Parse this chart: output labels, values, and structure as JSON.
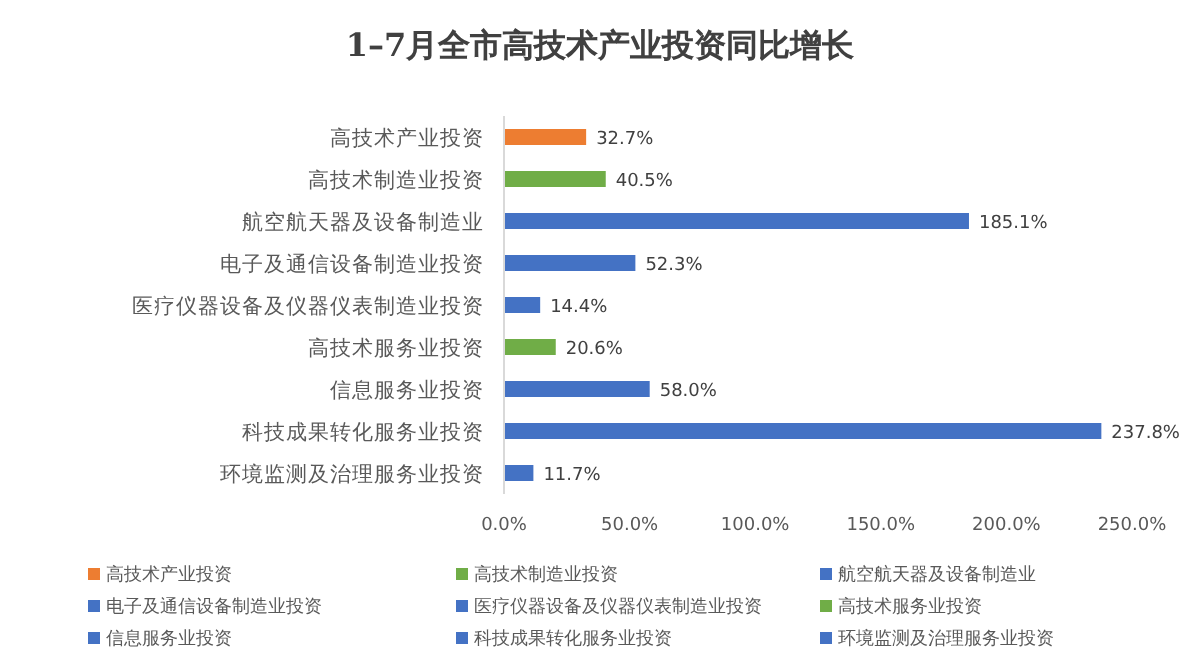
{
  "chart_data": {
    "type": "bar",
    "orientation": "horizontal",
    "stacked": true,
    "title": "1–7月全市高技术产业投资同比增长",
    "categories": [
      "高技术产业投资",
      "高技术制造业投资",
      "航空航天器及设备制造业",
      "电子及通信设备制造业投资",
      "医疗仪器设备及仪器仪表制造业投资",
      "高技术服务业投资",
      "信息服务业投资",
      "科技成果转化服务业投资",
      "环境监测及治理服务业投资"
    ],
    "series": [
      {
        "name": "高技术产业投资",
        "color": "#ed7d31",
        "values": [
          32.7,
          null,
          null,
          null,
          null,
          null,
          null,
          null,
          null
        ],
        "value_labels": [
          "32.7%",
          null,
          null,
          null,
          null,
          null,
          null,
          null,
          null
        ]
      },
      {
        "name": "高技术制造业投资",
        "color": "#70ad47",
        "values": [
          null,
          40.5,
          null,
          null,
          null,
          null,
          null,
          null,
          null
        ],
        "value_labels": [
          null,
          "40.5%",
          null,
          null,
          null,
          null,
          null,
          null,
          null
        ]
      },
      {
        "name": "航空航天器及设备制造业",
        "color": "#4472c4",
        "values": [
          null,
          null,
          185.1,
          null,
          null,
          null,
          null,
          null,
          null
        ],
        "value_labels": [
          null,
          null,
          "185.1%",
          null,
          null,
          null,
          null,
          null,
          null
        ]
      },
      {
        "name": "电子及通信设备制造业投资",
        "color": "#4472c4",
        "values": [
          null,
          null,
          null,
          52.3,
          null,
          null,
          null,
          null,
          null
        ],
        "value_labels": [
          null,
          null,
          null,
          "52.3%",
          null,
          null,
          null,
          null,
          null
        ]
      },
      {
        "name": "医疗仪器设备及仪器仪表制造业投资",
        "color": "#4472c4",
        "values": [
          null,
          null,
          null,
          null,
          14.4,
          null,
          null,
          null,
          null
        ],
        "value_labels": [
          null,
          null,
          null,
          null,
          "14.4%",
          null,
          null,
          null,
          null
        ]
      },
      {
        "name": "高技术服务业投资",
        "color": "#70ad47",
        "values": [
          null,
          null,
          null,
          null,
          null,
          20.6,
          null,
          null,
          null
        ],
        "value_labels": [
          null,
          null,
          null,
          null,
          null,
          "20.6%",
          null,
          null,
          null
        ]
      },
      {
        "name": "信息服务业投资",
        "color": "#4472c4",
        "values": [
          null,
          null,
          null,
          null,
          null,
          null,
          58.0,
          null,
          null
        ],
        "value_labels": [
          null,
          null,
          null,
          null,
          null,
          null,
          "58.0%",
          null,
          null
        ]
      },
      {
        "name": "科技成果转化服务业投资",
        "color": "#4472c4",
        "values": [
          null,
          null,
          null,
          null,
          null,
          null,
          null,
          237.8,
          null
        ],
        "value_labels": [
          null,
          null,
          null,
          null,
          null,
          null,
          null,
          "237.8%",
          null
        ]
      },
      {
        "name": "环境监测及治理服务业投资",
        "color": "#4472c4",
        "values": [
          null,
          null,
          null,
          null,
          null,
          null,
          null,
          null,
          11.7
        ],
        "value_labels": [
          null,
          null,
          null,
          null,
          null,
          null,
          null,
          null,
          "11.7%"
        ]
      }
    ],
    "xlim": [
      0,
      250
    ],
    "xticks": [
      {
        "value": 0,
        "label": "0.0%"
      },
      {
        "value": 50,
        "label": "50.0%"
      },
      {
        "value": 100,
        "label": "100.0%"
      },
      {
        "value": 150,
        "label": "150.0%"
      },
      {
        "value": 200,
        "label": "200.0%"
      },
      {
        "value": 250,
        "label": "250.0%"
      }
    ],
    "legend": "bottom"
  }
}
